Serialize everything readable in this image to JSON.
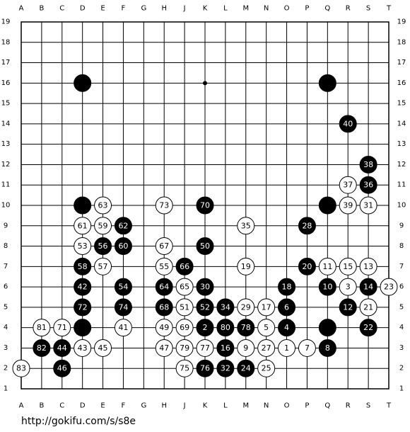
{
  "board": {
    "columns": [
      "A",
      "B",
      "C",
      "D",
      "E",
      "F",
      "G",
      "H",
      "J",
      "K",
      "L",
      "M",
      "N",
      "O",
      "P",
      "Q",
      "R",
      "S",
      "T"
    ],
    "rows": [
      19,
      18,
      17,
      16,
      15,
      14,
      13,
      12,
      11,
      10,
      9,
      8,
      7,
      6,
      5,
      4,
      3,
      2,
      1
    ],
    "stones": [
      {
        "x": "D",
        "y": 16,
        "color": "black"
      },
      {
        "x": "Q",
        "y": 16,
        "color": "black"
      },
      {
        "x": "D",
        "y": 10,
        "color": "black"
      },
      {
        "x": "Q",
        "y": 10,
        "color": "black"
      },
      {
        "x": "D",
        "y": 4,
        "color": "black"
      },
      {
        "x": "Q",
        "y": 4,
        "color": "black"
      },
      {
        "x": "R",
        "y": 14,
        "color": "black",
        "label": 40
      },
      {
        "x": "S",
        "y": 12,
        "color": "black",
        "label": 38
      },
      {
        "x": "R",
        "y": 11,
        "color": "white",
        "label": 37
      },
      {
        "x": "S",
        "y": 11,
        "color": "black",
        "label": 36
      },
      {
        "x": "E",
        "y": 10,
        "color": "white",
        "label": 63
      },
      {
        "x": "H",
        "y": 10,
        "color": "white",
        "label": 73
      },
      {
        "x": "K",
        "y": 10,
        "color": "black",
        "label": 70
      },
      {
        "x": "R",
        "y": 10,
        "color": "white",
        "label": 39
      },
      {
        "x": "S",
        "y": 10,
        "color": "white",
        "label": 31
      },
      {
        "x": "D",
        "y": 9,
        "color": "white",
        "label": 61
      },
      {
        "x": "E",
        "y": 9,
        "color": "white",
        "label": 59
      },
      {
        "x": "F",
        "y": 9,
        "color": "black",
        "label": 62
      },
      {
        "x": "M",
        "y": 9,
        "color": "white",
        "label": 35
      },
      {
        "x": "P",
        "y": 9,
        "color": "black",
        "label": 28
      },
      {
        "x": "D",
        "y": 8,
        "color": "white",
        "label": 53
      },
      {
        "x": "E",
        "y": 8,
        "color": "black",
        "label": 56
      },
      {
        "x": "F",
        "y": 8,
        "color": "black",
        "label": 60
      },
      {
        "x": "H",
        "y": 8,
        "color": "white",
        "label": 67
      },
      {
        "x": "K",
        "y": 8,
        "color": "black",
        "label": 50
      },
      {
        "x": "D",
        "y": 7,
        "color": "black",
        "label": 58
      },
      {
        "x": "E",
        "y": 7,
        "color": "white",
        "label": 57
      },
      {
        "x": "H",
        "y": 7,
        "color": "white",
        "label": 55
      },
      {
        "x": "J",
        "y": 7,
        "color": "black",
        "label": 66
      },
      {
        "x": "M",
        "y": 7,
        "color": "white",
        "label": 19
      },
      {
        "x": "P",
        "y": 7,
        "color": "black",
        "label": 20
      },
      {
        "x": "Q",
        "y": 7,
        "color": "white",
        "label": 11
      },
      {
        "x": "R",
        "y": 7,
        "color": "white",
        "label": 15
      },
      {
        "x": "S",
        "y": 7,
        "color": "white",
        "label": 13
      },
      {
        "x": "D",
        "y": 6,
        "color": "black",
        "label": 42
      },
      {
        "x": "F",
        "y": 6,
        "color": "black",
        "label": 54
      },
      {
        "x": "H",
        "y": 6,
        "color": "black",
        "label": 64
      },
      {
        "x": "J",
        "y": 6,
        "color": "white",
        "label": 65
      },
      {
        "x": "K",
        "y": 6,
        "color": "black",
        "label": 30
      },
      {
        "x": "O",
        "y": 6,
        "color": "black",
        "label": 18
      },
      {
        "x": "Q",
        "y": 6,
        "color": "black",
        "label": 10
      },
      {
        "x": "R",
        "y": 6,
        "color": "white",
        "label": 3
      },
      {
        "x": "S",
        "y": 6,
        "color": "black",
        "label": 14
      },
      {
        "x": "T",
        "y": 6,
        "color": "white",
        "label": 23
      },
      {
        "x": "D",
        "y": 5,
        "color": "black",
        "label": 72
      },
      {
        "x": "F",
        "y": 5,
        "color": "black",
        "label": 74
      },
      {
        "x": "H",
        "y": 5,
        "color": "black",
        "label": 68
      },
      {
        "x": "J",
        "y": 5,
        "color": "white",
        "label": 51
      },
      {
        "x": "K",
        "y": 5,
        "color": "black",
        "label": 52
      },
      {
        "x": "L",
        "y": 5,
        "color": "black",
        "label": 34
      },
      {
        "x": "M",
        "y": 5,
        "color": "white",
        "label": 29
      },
      {
        "x": "N",
        "y": 5,
        "color": "white",
        "label": 17
      },
      {
        "x": "O",
        "y": 5,
        "color": "black",
        "label": 6
      },
      {
        "x": "R",
        "y": 5,
        "color": "black",
        "label": 12
      },
      {
        "x": "S",
        "y": 5,
        "color": "white",
        "label": 21
      },
      {
        "x": "B",
        "y": 4,
        "color": "white",
        "label": 81
      },
      {
        "x": "C",
        "y": 4,
        "color": "white",
        "label": 71
      },
      {
        "x": "F",
        "y": 4,
        "color": "white",
        "label": 41
      },
      {
        "x": "H",
        "y": 4,
        "color": "white",
        "label": 49
      },
      {
        "x": "J",
        "y": 4,
        "color": "white",
        "label": 69
      },
      {
        "x": "K",
        "y": 4,
        "color": "black",
        "label": 2
      },
      {
        "x": "L",
        "y": 4,
        "color": "black",
        "label": 80
      },
      {
        "x": "M",
        "y": 4,
        "color": "black",
        "label": 78
      },
      {
        "x": "N",
        "y": 4,
        "color": "white",
        "label": 5
      },
      {
        "x": "O",
        "y": 4,
        "color": "black",
        "label": 4
      },
      {
        "x": "S",
        "y": 4,
        "color": "black",
        "label": 22
      },
      {
        "x": "B",
        "y": 3,
        "color": "black",
        "label": 82
      },
      {
        "x": "C",
        "y": 3,
        "color": "black",
        "label": 44
      },
      {
        "x": "D",
        "y": 3,
        "color": "white",
        "label": 43
      },
      {
        "x": "E",
        "y": 3,
        "color": "white",
        "label": 45
      },
      {
        "x": "H",
        "y": 3,
        "color": "white",
        "label": 47
      },
      {
        "x": "J",
        "y": 3,
        "color": "white",
        "label": 79
      },
      {
        "x": "K",
        "y": 3,
        "color": "white",
        "label": 77
      },
      {
        "x": "L",
        "y": 3,
        "color": "black",
        "label": 16
      },
      {
        "x": "M",
        "y": 3,
        "color": "white",
        "label": 9
      },
      {
        "x": "N",
        "y": 3,
        "color": "white",
        "label": 27
      },
      {
        "x": "O",
        "y": 3,
        "color": "white",
        "label": 1
      },
      {
        "x": "P",
        "y": 3,
        "color": "white",
        "label": 7
      },
      {
        "x": "Q",
        "y": 3,
        "color": "black",
        "label": 8
      },
      {
        "x": "A",
        "y": 2,
        "color": "white",
        "label": 83
      },
      {
        "x": "C",
        "y": 2,
        "color": "black",
        "label": 46
      },
      {
        "x": "J",
        "y": 2,
        "color": "white",
        "label": 75
      },
      {
        "x": "K",
        "y": 2,
        "color": "black",
        "label": 76
      },
      {
        "x": "L",
        "y": 2,
        "color": "black",
        "label": 32
      },
      {
        "x": "M",
        "y": 2,
        "color": "black",
        "label": 24
      },
      {
        "x": "N",
        "y": 2,
        "color": "white",
        "label": 25
      }
    ]
  },
  "footer": {
    "url": "http://gokifu.com/s/s8e"
  }
}
